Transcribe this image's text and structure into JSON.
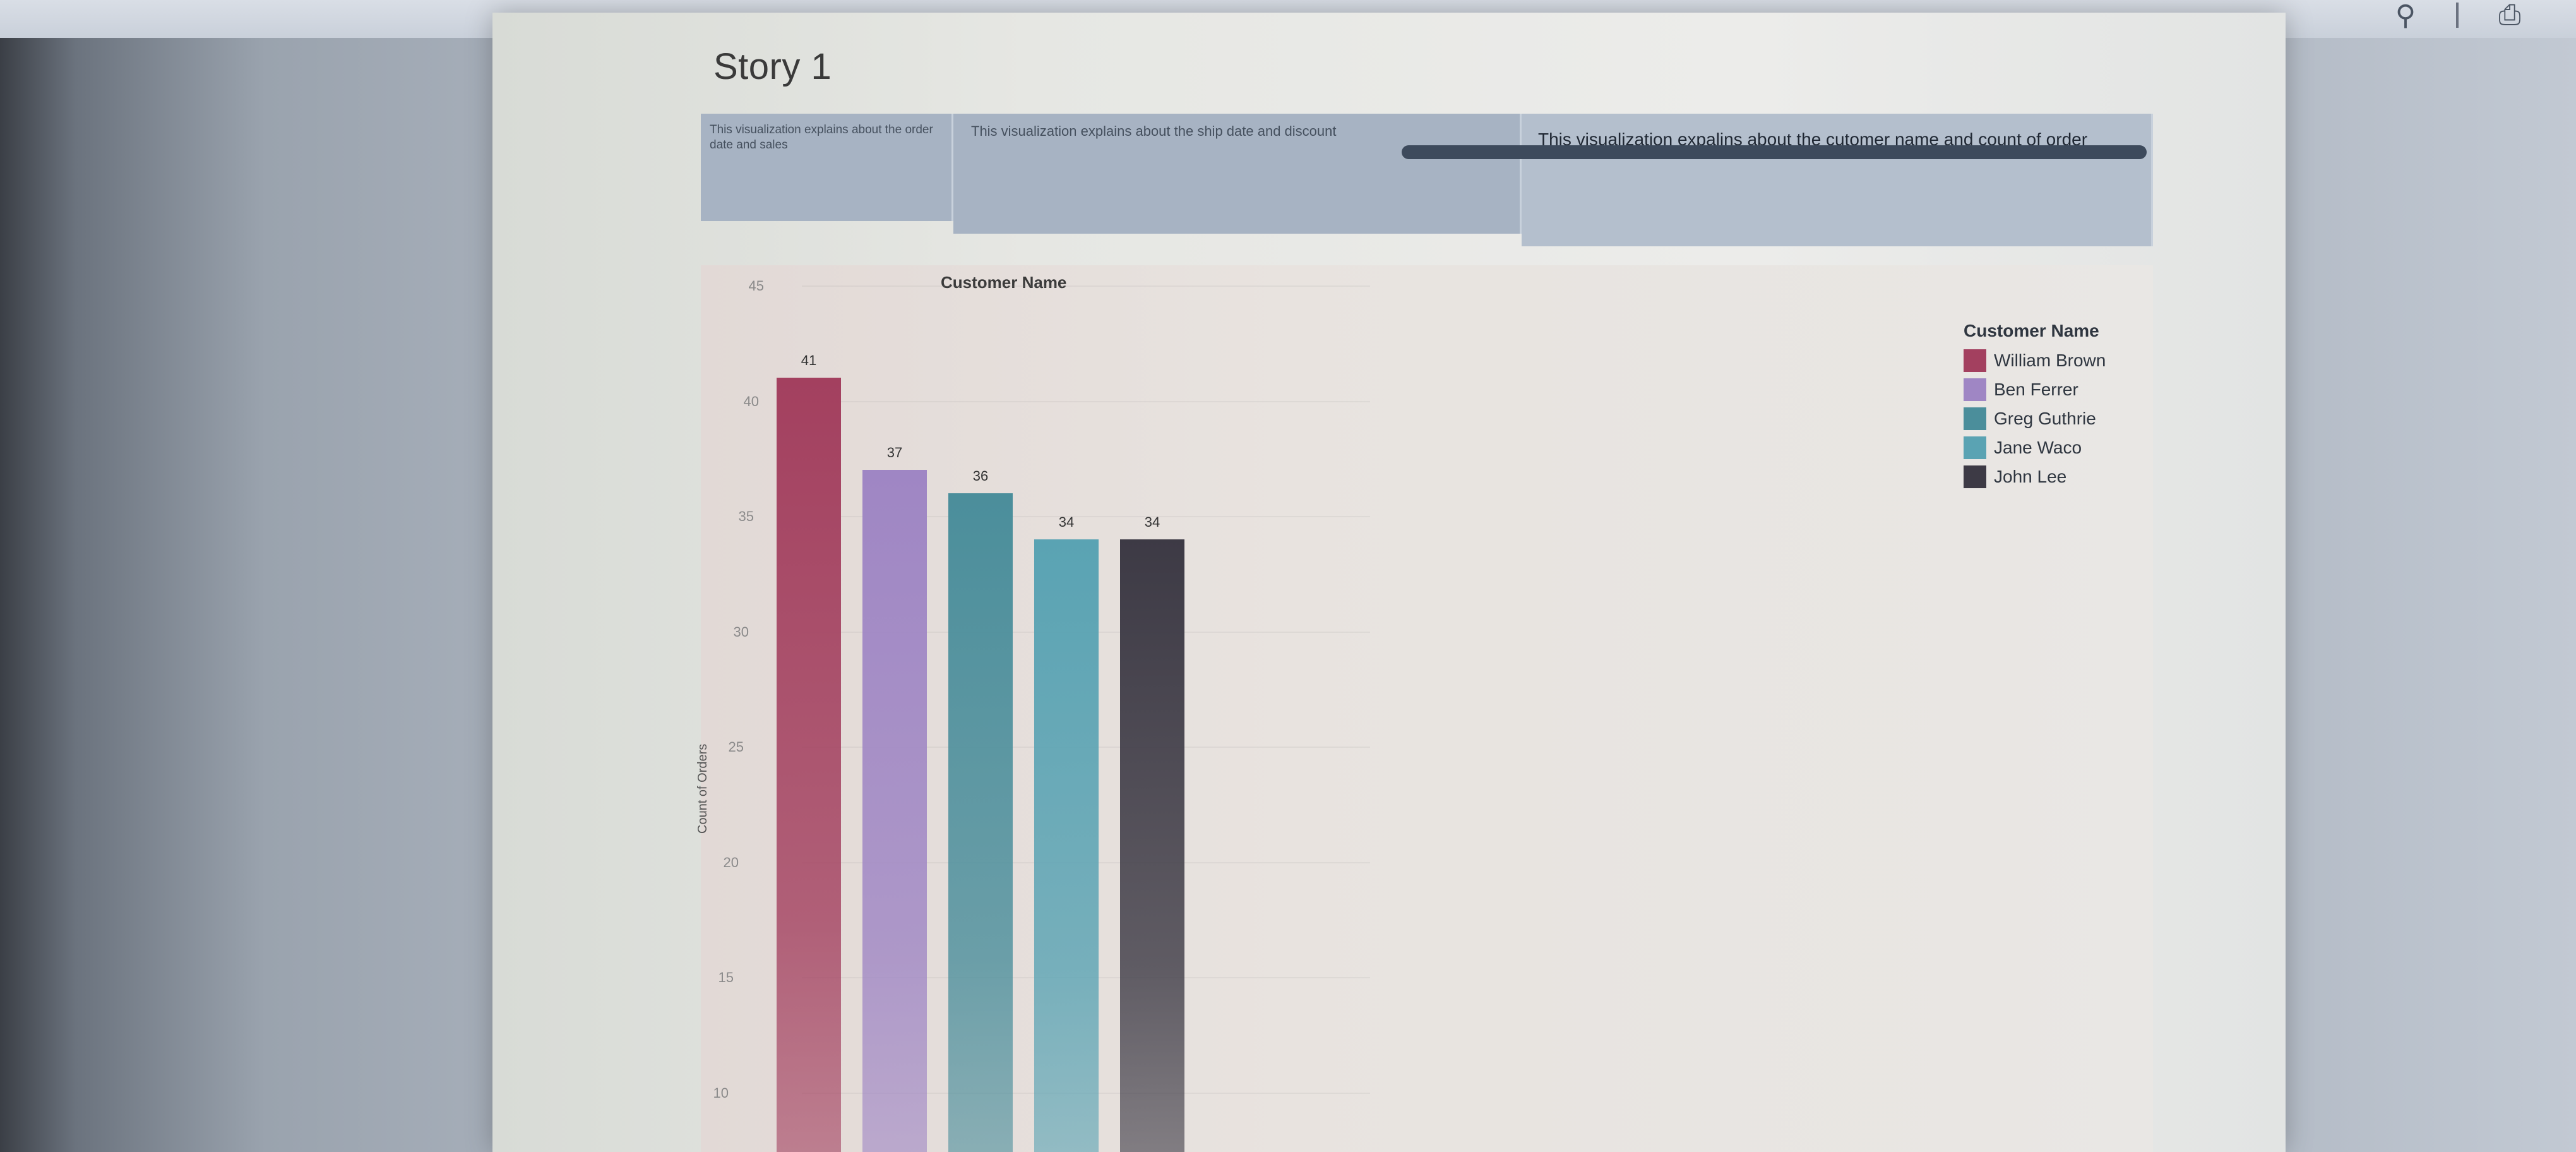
{
  "app": {
    "toolbar": {
      "search_icon": "search-icon",
      "print_icon": "printer-icon"
    }
  },
  "story": {
    "title": "Story 1",
    "nav": [
      {
        "text": "This visualization explains about the order date and sales"
      },
      {
        "text": "This visualization explains about the ship date and discount"
      },
      {
        "text": "This visualization expalins about the cutomer name and count of order"
      }
    ]
  },
  "chart": {
    "title": "Customer Name",
    "ylabel": "Count of Orders",
    "legend": {
      "title": "Customer Name",
      "items": [
        {
          "name": "William Brown",
          "color": "#a3405f"
        },
        {
          "name": "Ben Ferrer",
          "color": "#9f86c4"
        },
        {
          "name": "Greg Guthrie",
          "color": "#4b8e9b"
        },
        {
          "name": "Jane Waco",
          "color": "#5aa3b3"
        },
        {
          "name": "John Lee",
          "color": "#3d3a45"
        }
      ]
    }
  },
  "chart_data": {
    "type": "bar",
    "title": "Customer Name",
    "xlabel": "",
    "ylabel": "Count of Orders",
    "categories": [
      "William Brown",
      "Ben Ferrer",
      "Greg Guthrie",
      "Jane Waco",
      "John Lee"
    ],
    "values": [
      41,
      37,
      36,
      34,
      34
    ],
    "colors": [
      "#a3405f",
      "#9f86c4",
      "#4b8e9b",
      "#5aa3b3",
      "#3d3a45"
    ],
    "yticks": [
      10,
      15,
      20,
      25,
      30,
      35,
      40,
      45
    ],
    "ylim": [
      0,
      45
    ],
    "legend": "top-right",
    "grid": true
  }
}
